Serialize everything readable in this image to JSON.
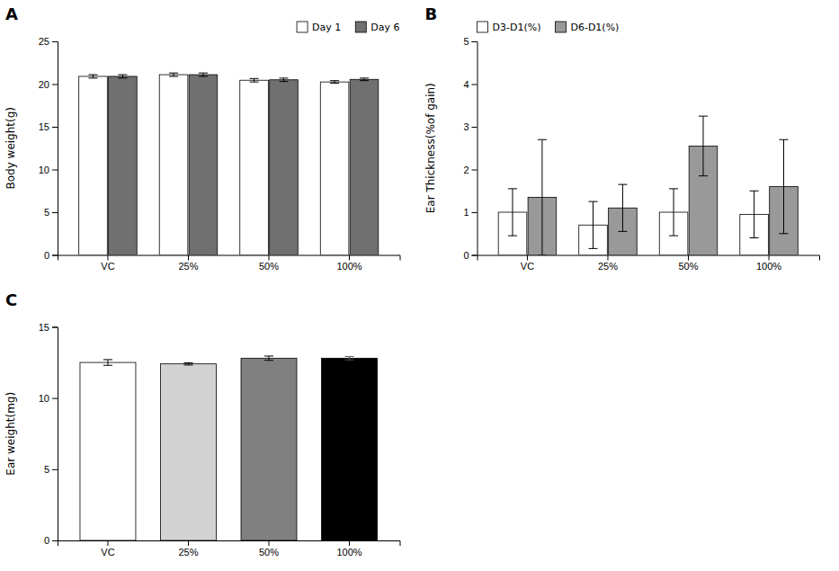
{
  "chart_data": [
    {
      "type": "bar",
      "title": "A",
      "categories": [
        "VC",
        "25%",
        "50%",
        "100%"
      ],
      "ylabel": "Body weight(g)",
      "ylim": [
        0,
        25
      ],
      "yticks": [
        0,
        5,
        10,
        15,
        20,
        25
      ],
      "legend": "upper right",
      "grid": false,
      "series": [
        {
          "name": "Day 1",
          "color": "white",
          "values": [
            20.9,
            21.1,
            20.45,
            20.25
          ],
          "errors": [
            0.2,
            0.2,
            0.2,
            0.15
          ]
        },
        {
          "name": "Day 6",
          "color": "#707070",
          "values": [
            20.9,
            21.1,
            20.5,
            20.55
          ],
          "errors": [
            0.2,
            0.2,
            0.2,
            0.15
          ]
        }
      ]
    },
    {
      "type": "bar",
      "title": "B",
      "categories": [
        "VC",
        "25%",
        "50%",
        "100%"
      ],
      "ylabel": "Ear Thickness(%of gain)",
      "ylim": [
        0,
        5
      ],
      "yticks": [
        0,
        1,
        2,
        3,
        4,
        5
      ],
      "legend": "upper left",
      "grid": false,
      "series": [
        {
          "name": "D3-D1(%)",
          "color": "white",
          "values": [
            1.0,
            0.7,
            1.0,
            0.95
          ],
          "errors": [
            0.55,
            0.55,
            0.55,
            0.55
          ]
        },
        {
          "name": "D6-D1(%)",
          "color": "#999999",
          "values": [
            1.35,
            1.1,
            2.55,
            1.6
          ],
          "errors": [
            1.35,
            0.55,
            0.7,
            1.1
          ]
        }
      ]
    },
    {
      "type": "bar",
      "title": "C",
      "categories": [
        "VC",
        "25%",
        "50%",
        "100%"
      ],
      "ylabel": "Ear weight(mg)",
      "ylim": [
        0,
        15
      ],
      "yticks": [
        0,
        5,
        10,
        15
      ],
      "grid": false,
      "values": [
        12.5,
        12.4,
        12.8,
        12.8
      ],
      "errors": [
        0.2,
        0.08,
        0.15,
        0.12
      ],
      "colors": [
        "white",
        "#d3d3d3",
        "#808080",
        "#000000"
      ]
    }
  ]
}
